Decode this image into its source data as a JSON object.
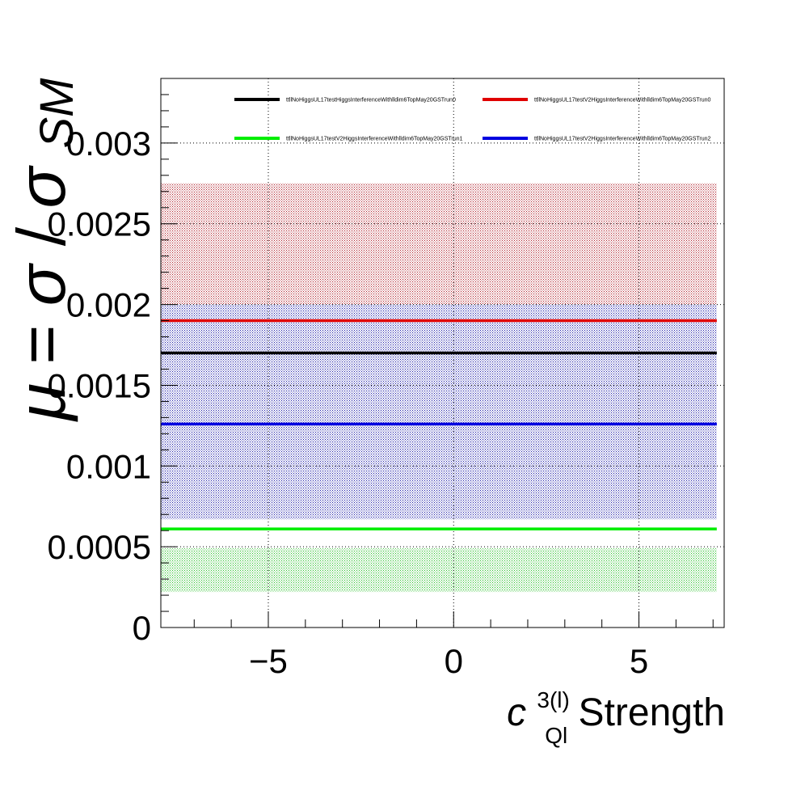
{
  "chart_data": {
    "type": "line",
    "title": "",
    "xlabel": {
      "main": "c",
      "superscript": "3(l)",
      "subscript": "Ql",
      "suffix": " Strength"
    },
    "ylabel": {
      "mu": "μ",
      "eq": " = ",
      "sigma": "σ",
      "slash": "/",
      "sigma2": "σ",
      "sub": "SM"
    },
    "xlim": [
      -7.9,
      7.3
    ],
    "ylim": [
      0,
      0.0034
    ],
    "x_ticks": [
      -5,
      0,
      5
    ],
    "x_tick_labels": [
      "−5",
      "0",
      "5"
    ],
    "y_ticks": [
      0,
      0.0005,
      0.001,
      0.0015,
      0.002,
      0.0025,
      0.003
    ],
    "y_tick_labels": [
      "0",
      "0.0005",
      "0.001",
      "0.0015",
      "0.002",
      "0.0025",
      "0.003"
    ],
    "grid": true,
    "legend_position": "top",
    "series": [
      {
        "name": "ttllNoHiggsUL17testHiggsInterferenceWithlldim6TopMay20GSTrun0",
        "color": "#000000",
        "x": [
          -7.9,
          7.1
        ],
        "y": [
          0.0017,
          0.0017
        ],
        "band": [
          0.002,
          0.0027
        ]
      },
      {
        "name": "ttllNoHiggsUL17testV2HiggsInterferenceWithlldim6TopMay20GSTrun0",
        "color": "#e00000",
        "x": [
          -7.9,
          7.1
        ],
        "y": [
          0.0019,
          0.0019
        ],
        "band": [
          0.002,
          0.00275
        ]
      },
      {
        "name": "ttllNoHiggsUL17testV2HiggsInterferenceWithlldim6TopMay20GSTrun1",
        "color": "#00ee00",
        "x": [
          -7.9,
          7.1
        ],
        "y": [
          0.00061,
          0.00061
        ],
        "band": [
          0.00022,
          0.00049
        ]
      },
      {
        "name": "ttllNoHiggsUL17testV2HiggsInterferenceWithlldim6TopMay20GSTrun2",
        "color": "#0000e0",
        "x": [
          -7.9,
          7.1
        ],
        "y": [
          0.00126,
          0.00126
        ],
        "band": [
          0.00067,
          0.002
        ]
      }
    ]
  }
}
